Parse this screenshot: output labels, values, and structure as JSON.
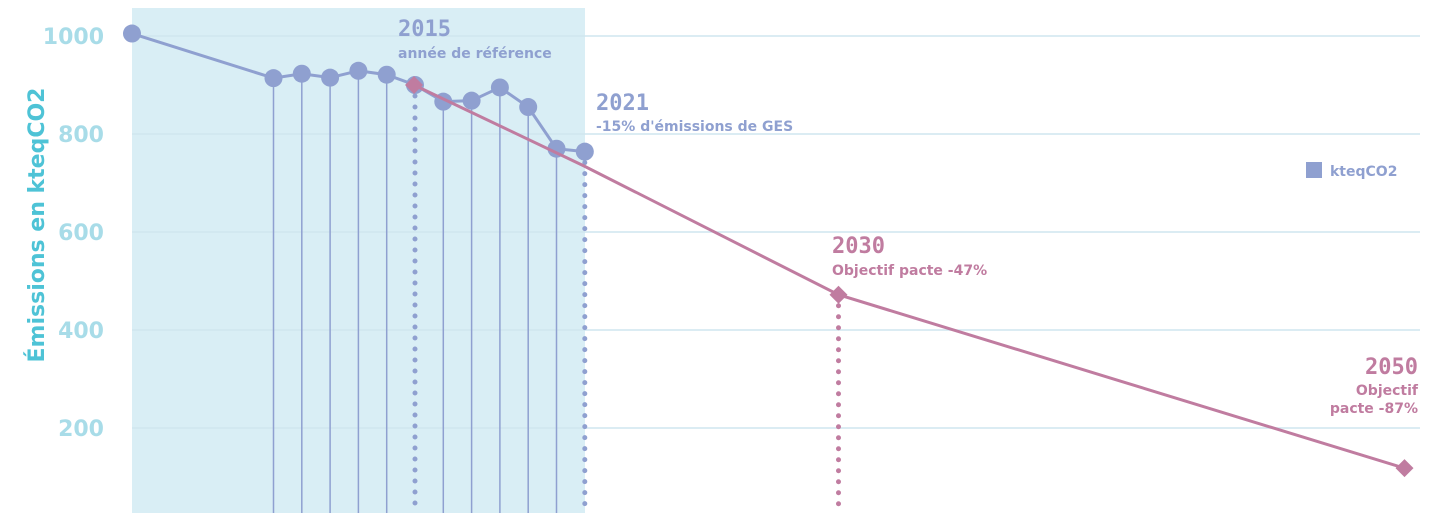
{
  "chart_data": {
    "type": "line",
    "ylabel": "Émissions en kteqCO2",
    "ylim": [
      0,
      1000
    ],
    "yticks": [
      200,
      400,
      600,
      800,
      1000
    ],
    "grid": true,
    "legend": {
      "placement": "right",
      "entries": [
        "kteqCO2"
      ]
    },
    "colors": {
      "historical": "#8fa0d0",
      "target": "#c07ca0",
      "band": "#d9eef5",
      "grid": "#cfe6ef",
      "tick": "#a8dce8",
      "ylabel": "#4ec3d6"
    },
    "series": [
      {
        "name": "kteqCO2",
        "x": [
          2005,
          2010,
          2011,
          2012,
          2013,
          2014,
          2015,
          2016,
          2017,
          2018,
          2019,
          2020,
          2021
        ],
        "values": [
          1005,
          914,
          923,
          915,
          929,
          921,
          900,
          866,
          868,
          895,
          855,
          770,
          764
        ]
      },
      {
        "x": [
          2015,
          2021,
          2030,
          2050
        ],
        "values": [
          900,
          735,
          472,
          118
        ]
      }
    ],
    "annotations": [
      {
        "year": "2015",
        "text": "année de référence"
      },
      {
        "year": "2021",
        "text": "-15% d'émissions de GES"
      },
      {
        "year": "2030",
        "text": "Objectif pacte -47%"
      },
      {
        "year": "2050",
        "text": "Objectif",
        "text2": "pacte -87%"
      }
    ]
  }
}
